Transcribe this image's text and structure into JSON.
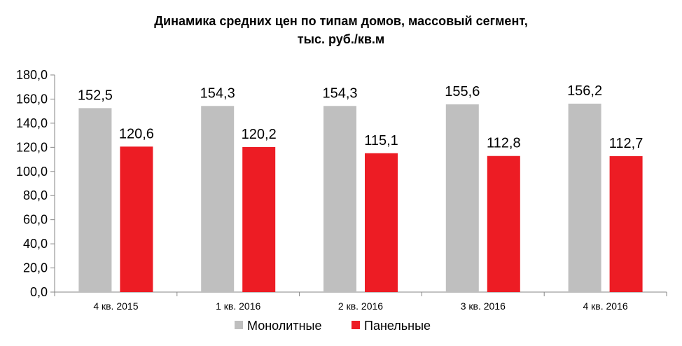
{
  "chart_data": {
    "type": "bar",
    "title_line1": "Динамика средних цен по типам домов, массовый сегмент,",
    "title_line2": "тыс. руб./кв.м",
    "categories": [
      "4 кв. 2015",
      "1 кв. 2016",
      "2 кв. 2016",
      "3 кв. 2016",
      "4 кв. 2016"
    ],
    "series": [
      {
        "name": "Монолитные",
        "color": "#bfbfbf",
        "values": [
          152.5,
          154.3,
          154.3,
          155.6,
          156.2
        ],
        "labels": [
          "152,5",
          "154,3",
          "154,3",
          "155,6",
          "156,2"
        ]
      },
      {
        "name": "Панельные",
        "color": "#ed1c24",
        "values": [
          120.6,
          120.2,
          115.1,
          112.8,
          112.7
        ],
        "labels": [
          "120,6",
          "120,2",
          "115,1",
          "112,8",
          "112,7"
        ]
      }
    ],
    "ylim": [
      0,
      180
    ],
    "yticks": [
      0,
      20,
      40,
      60,
      80,
      100,
      120,
      140,
      160,
      180
    ],
    "ytick_labels": [
      "0,0",
      "20,0",
      "40,0",
      "60,0",
      "80,0",
      "100,0",
      "120,0",
      "140,0",
      "160,0",
      "180,0"
    ],
    "grid": false,
    "legend_position": "bottom"
  }
}
